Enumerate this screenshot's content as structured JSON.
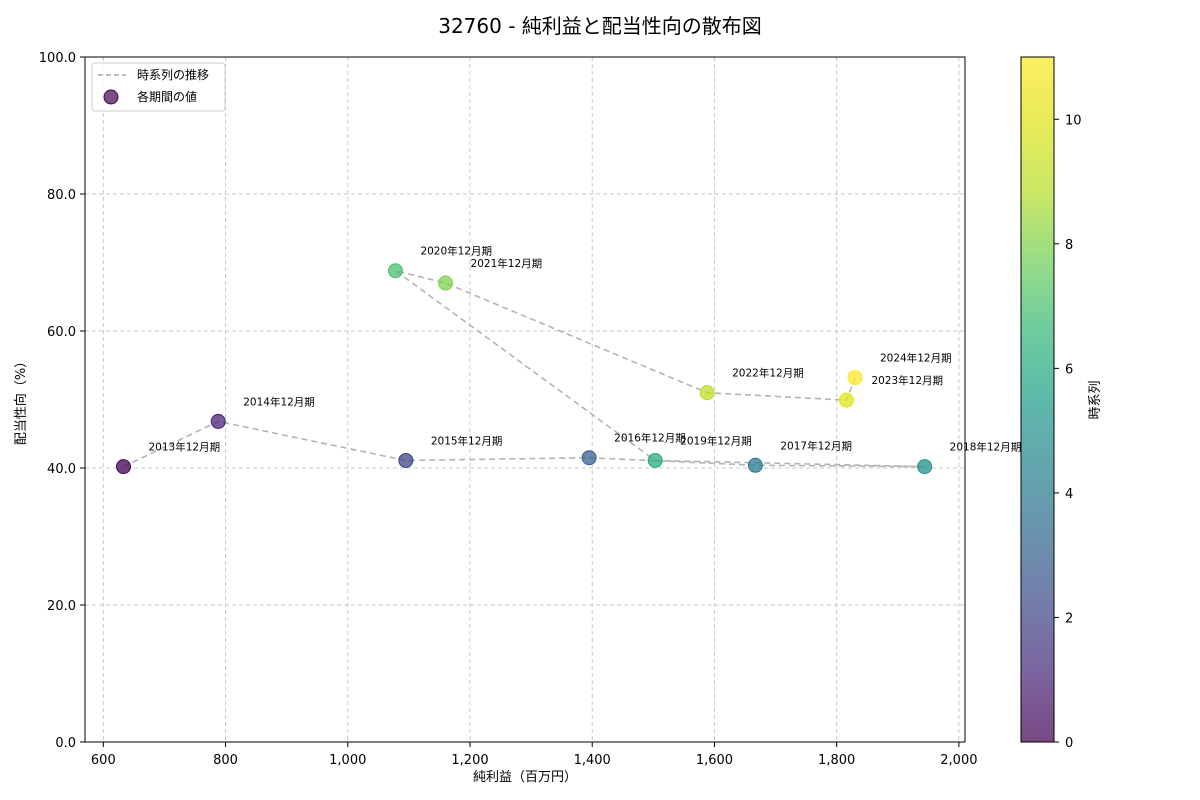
{
  "chart_data": {
    "type": "scatter",
    "title": "32760 - 純利益と配当性向の散布図",
    "xlabel": "純利益（百万円）",
    "ylabel": "配当性向（%）",
    "xlim": [
      570,
      2010
    ],
    "ylim": [
      0,
      100
    ],
    "xticks": [
      600,
      800,
      1000,
      1200,
      1400,
      1600,
      1800,
      2000
    ],
    "xtick_labels": [
      "600",
      "800",
      "1,000",
      "1,200",
      "1,400",
      "1,600",
      "1,800",
      "2,000"
    ],
    "yticks": [
      0,
      20,
      40,
      60,
      80,
      100
    ],
    "ytick_labels": [
      "0.0",
      "20.0",
      "40.0",
      "60.0",
      "80.0",
      "100.0"
    ],
    "grid": true,
    "legend_position": "top-left",
    "legend": [
      "時系列の推移",
      "各期間の値"
    ],
    "colorbar": {
      "label": "時系列",
      "min": 0,
      "max": 11,
      "ticks": [
        0,
        2,
        4,
        6,
        8,
        10
      ],
      "tick_labels": [
        "0",
        "2",
        "4",
        "6",
        "8",
        "10"
      ]
    },
    "points": [
      {
        "label": "2013年12月期",
        "x": 633,
        "y": 40.2,
        "t": 0
      },
      {
        "label": "2014年12月期",
        "x": 788,
        "y": 46.8,
        "t": 1
      },
      {
        "label": "2015年12月期",
        "x": 1095,
        "y": 41.1,
        "t": 2
      },
      {
        "label": "2016年12月期",
        "x": 1395,
        "y": 41.5,
        "t": 3
      },
      {
        "label": "2017年12月期",
        "x": 1667,
        "y": 40.4,
        "t": 4
      },
      {
        "label": "2018年12月期",
        "x": 1944,
        "y": 40.2,
        "t": 5
      },
      {
        "label": "2019年12月期",
        "x": 1503,
        "y": 41.1,
        "t": 6
      },
      {
        "label": "2020年12月期",
        "x": 1078,
        "y": 68.8,
        "t": 7
      },
      {
        "label": "2021年12月期",
        "x": 1160,
        "y": 67.0,
        "t": 8
      },
      {
        "label": "2022年12月期",
        "x": 1588,
        "y": 51.0,
        "t": 9
      },
      {
        "label": "2023年12月期",
        "x": 1816,
        "y": 49.9,
        "t": 10
      },
      {
        "label": "2024年12月期",
        "x": 1830,
        "y": 53.2,
        "t": 11
      }
    ]
  }
}
